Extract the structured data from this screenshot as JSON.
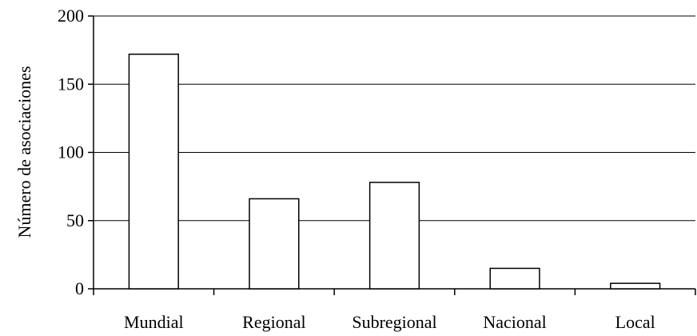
{
  "chart_data": {
    "type": "bar",
    "title": "",
    "xlabel": "",
    "ylabel": "Número de asociaciones",
    "categories": [
      "Mundial",
      "Regional",
      "Subregional",
      "Nacional",
      "Local"
    ],
    "values": [
      172,
      66,
      78,
      15,
      4
    ],
    "ylim": [
      0,
      200
    ],
    "yticks": [
      0,
      50,
      100,
      150,
      200
    ],
    "grid": true,
    "legend": "none",
    "colors": {
      "bar_fill": "#ffffff",
      "bar_stroke": "#000000",
      "grid": "#000000",
      "axis": "#000000"
    }
  }
}
